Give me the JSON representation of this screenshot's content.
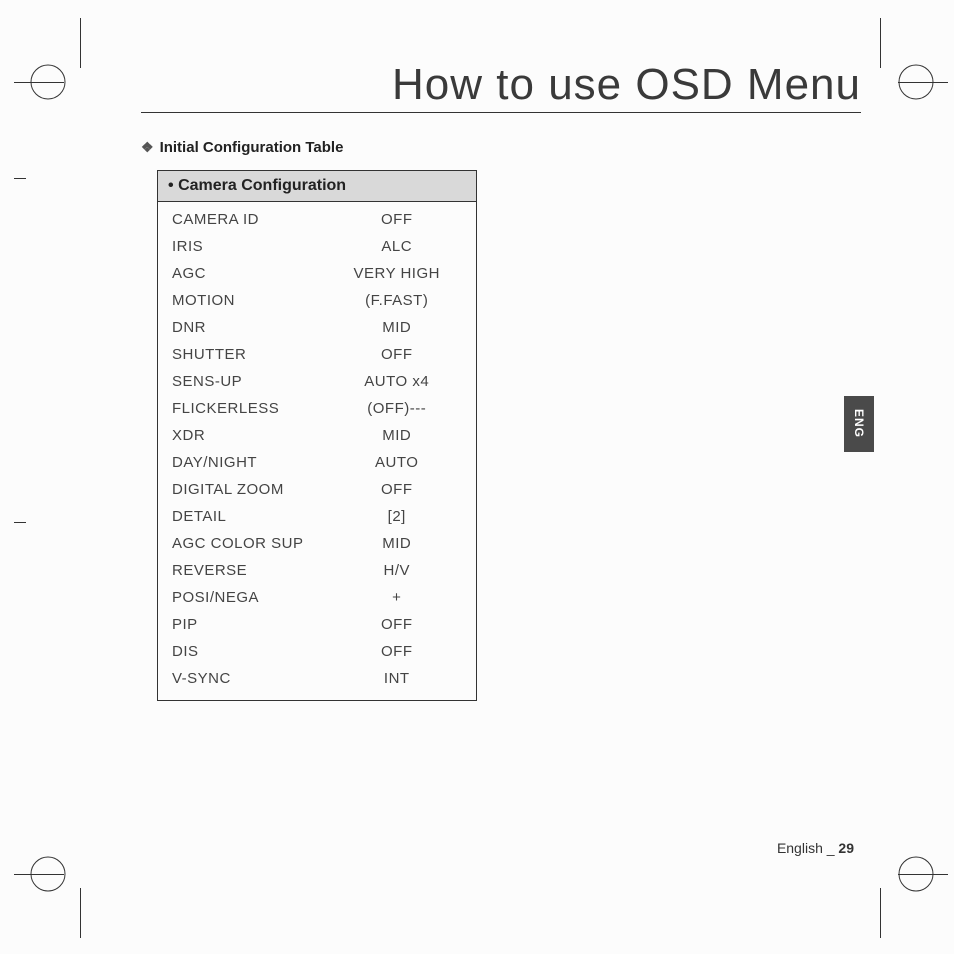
{
  "page_title": "How to use OSD Menu",
  "section_bullet": "❖",
  "section_heading": "Initial Configuration Table",
  "table": {
    "header_bullet": "•",
    "header": "Camera Configuration",
    "rows": [
      {
        "label": "CAMERA ID",
        "value": "OFF"
      },
      {
        "label": "IRIS",
        "value": "ALC"
      },
      {
        "label": "AGC",
        "value": "VERY HIGH"
      },
      {
        "label": "MOTION",
        "value": "(F.FAST)"
      },
      {
        "label": "DNR",
        "value": "MID"
      },
      {
        "label": "SHUTTER",
        "value": "OFF"
      },
      {
        "label": "SENS-UP",
        "value": "AUTO x4"
      },
      {
        "label": "FLICKERLESS",
        "value": "(OFF)---"
      },
      {
        "label": "XDR",
        "value": "MID"
      },
      {
        "label": "DAY/NIGHT",
        "value": "AUTO"
      },
      {
        "label": "DIGITAL ZOOM",
        "value": "OFF"
      },
      {
        "label": "DETAIL",
        "value": "[2]"
      },
      {
        "label": "AGC COLOR SUP",
        "value": "MID"
      },
      {
        "label": "REVERSE",
        "value": "H/V"
      },
      {
        "label": "POSI/NEGA",
        "value": "+"
      },
      {
        "label": "PIP",
        "value": "OFF"
      },
      {
        "label": "DIS",
        "value": "OFF"
      },
      {
        "label": "V-SYNC",
        "value": "INT"
      }
    ]
  },
  "side_tab": "ENG",
  "footer_text": "English _ ",
  "page_number": "29"
}
